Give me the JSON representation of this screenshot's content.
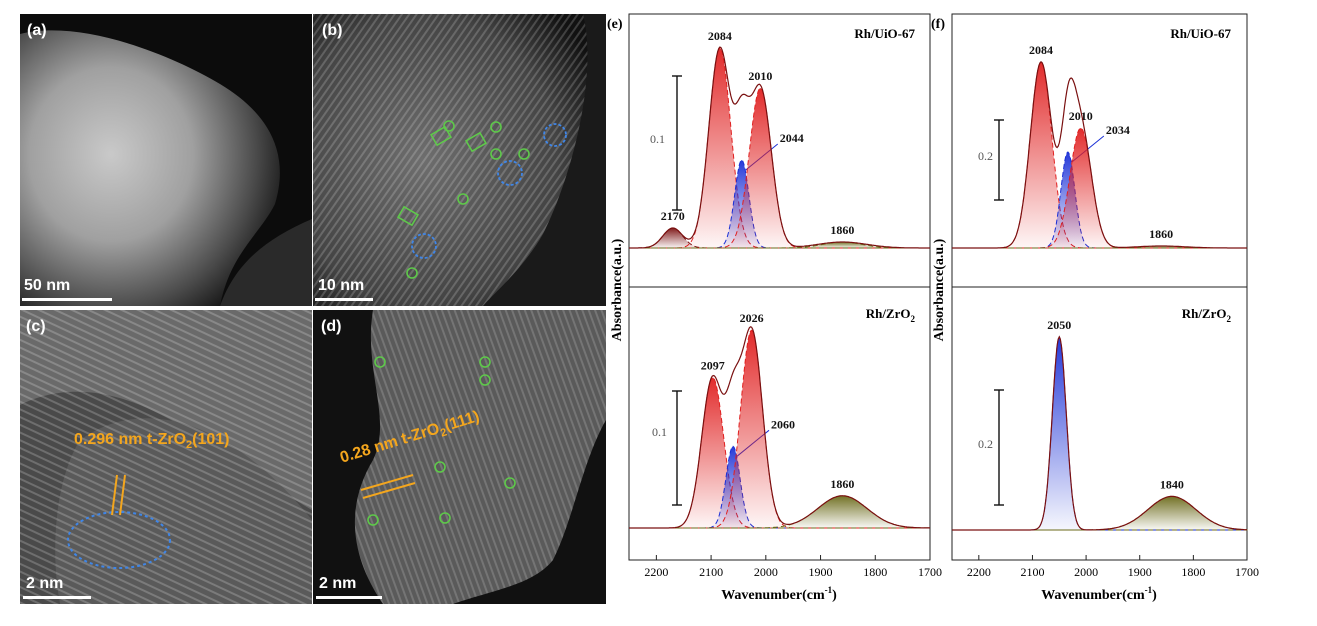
{
  "micrographs": {
    "a": {
      "label": "(a)",
      "scale": "50 nm"
    },
    "b": {
      "label": "(b)",
      "scale": "10 nm"
    },
    "c": {
      "label": "(c)",
      "scale": "2 nm",
      "annotation": "0.296 nm t-ZrO",
      "annotation_sub": "2",
      "annotation_tail": "(101)"
    },
    "d": {
      "label": "(d)",
      "scale": "2 nm",
      "annotation": "0.28 nm t-ZrO",
      "annotation_sub": "2",
      "annotation_tail": "(111)"
    }
  },
  "spectra": {
    "e": {
      "label": "(e)"
    },
    "f": {
      "label": "(f)"
    },
    "ylabel": "Absorbance(a.u.)",
    "xlabel": "Wavenumber(cm",
    "xlabel_sup": "-1",
    "xlabel_tail": ")",
    "xticks": [
      "2200",
      "2100",
      "2000",
      "1900",
      "1800",
      "1700"
    ],
    "colors": {
      "red": "#e02020",
      "blue": "#1a2fd6",
      "olive": "#6b6a1a",
      "envelope": "#7a1010"
    }
  },
  "chart_data": [
    {
      "type": "line",
      "panel": "e-top",
      "title": "Rh/UiO-67",
      "xlim": [
        2250,
        1700
      ],
      "scale_bar": "0.1",
      "peaks": [
        {
          "label": "2170",
          "x": 2170,
          "height": 0.1,
          "color": "envelope"
        },
        {
          "label": "2084",
          "x": 2084,
          "height": 1.0,
          "color": "red"
        },
        {
          "label": "2044",
          "x": 2044,
          "height": 0.44,
          "color": "blue"
        },
        {
          "label": "2010",
          "x": 2010,
          "height": 0.8,
          "color": "red"
        },
        {
          "label": "1860",
          "x": 1860,
          "height": 0.03,
          "color": "olive"
        }
      ]
    },
    {
      "type": "line",
      "panel": "e-bottom",
      "title": "Rh/ZrO",
      "title_sub": "2",
      "xlim": [
        2250,
        1700
      ],
      "scale_bar": "0.1",
      "peaks": [
        {
          "label": "2097",
          "x": 2097,
          "height": 0.7,
          "color": "red"
        },
        {
          "label": "2060",
          "x": 2060,
          "height": 0.38,
          "color": "blue"
        },
        {
          "label": "2026",
          "x": 2026,
          "height": 0.92,
          "color": "red"
        },
        {
          "label": "1860",
          "x": 1860,
          "height": 0.15,
          "color": "olive"
        }
      ]
    },
    {
      "type": "line",
      "panel": "f-top",
      "title": "Rh/UiO-67",
      "xlim": [
        2250,
        1700
      ],
      "scale_bar": "0.2",
      "peaks": [
        {
          "label": "2084",
          "x": 2084,
          "height": 0.93,
          "color": "red"
        },
        {
          "label": "2034",
          "x": 2034,
          "height": 0.48,
          "color": "blue"
        },
        {
          "label": "2010",
          "x": 2010,
          "height": 0.6,
          "color": "red"
        },
        {
          "label": "1860",
          "x": 1860,
          "height": 0.01,
          "color": "olive"
        }
      ]
    },
    {
      "type": "line",
      "panel": "f-bottom",
      "title": "Rh/ZrO",
      "title_sub": "2",
      "xlim": [
        2250,
        1700
      ],
      "scale_bar": "0.2",
      "peaks": [
        {
          "label": "2050",
          "x": 2050,
          "height": 0.92,
          "color": "blue"
        },
        {
          "label": "1840",
          "x": 1840,
          "height": 0.16,
          "color": "olive"
        }
      ]
    }
  ]
}
